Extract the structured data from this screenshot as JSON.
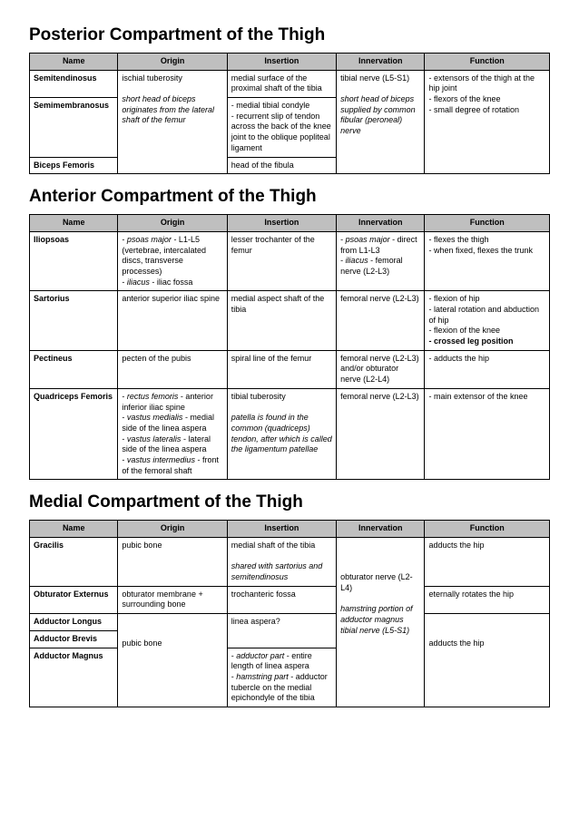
{
  "sections": [
    {
      "title": "Posterior Compartment of the Thigh",
      "headers": [
        "Name",
        "Origin",
        "Insertion",
        "Innervation",
        "Function"
      ],
      "style": {
        "header_bg": "#bfbfbf",
        "border_color": "#000000",
        "title_fontsize": 19,
        "cell_fontsize": 9
      },
      "rows": [
        {
          "name": "Semitendinosus",
          "insertion": "medial surface of the proximal shaft of the tibia"
        },
        {
          "name": "Semimembranosus",
          "insertion": "- medial tibial condyle\n- recurrent slip of tendon across the back of the knee joint to the oblique popliteal ligament"
        },
        {
          "name": "Biceps Femoris",
          "insertion": "head of the fibula"
        }
      ],
      "merged": {
        "origin": {
          "text": "ischial tuberosity",
          "note": "short head of biceps originates from the lateral shaft of the femur"
        },
        "innervation": {
          "text": "tibial nerve (L5-S1)",
          "note": "short head of biceps supplied by common fibular (peroneal) nerve"
        },
        "function": "- extensors of the thigh at the hip joint\n- flexors of the knee\n- small degree of rotation"
      }
    },
    {
      "title": "Anterior Compartment of the Thigh",
      "headers": [
        "Name",
        "Origin",
        "Insertion",
        "Innervation",
        "Function"
      ],
      "rows": [
        {
          "name": "Iliopsoas",
          "origin": {
            "items": [
              {
                "em": "psoas major",
                "rest": " - L1-L5 (vertebrae, intercalated discs, transverse processes)"
              },
              {
                "em": "iliacus",
                "rest": " - iliac fossa"
              }
            ]
          },
          "insertion": "lesser trochanter of the femur",
          "innervation": {
            "items": [
              {
                "em": "psoas major",
                "rest": " - direct from L1-L3"
              },
              {
                "em": "iliacus",
                "rest": " - femoral nerve (L2-L3)"
              }
            ]
          },
          "function": "- flexes the thigh\n- when fixed, flexes the trunk"
        },
        {
          "name": "Sartorius",
          "origin": "anterior superior iliac spine",
          "insertion": "medial aspect shaft of the tibia",
          "innervation": "femoral nerve (L2-L3)",
          "function": {
            "lines": [
              "- flexion of hip",
              "- lateral rotation and abduction of hip",
              "- flexion of the knee"
            ],
            "bold": "- crossed leg position"
          }
        },
        {
          "name": "Pectineus",
          "origin": "pecten of the pubis",
          "insertion": "spiral line of the femur",
          "innervation": "femoral nerve (L2-L3) and/or obturator nerve (L2-L4)",
          "function": "- adducts the hip"
        },
        {
          "name": "Quadriceps Femoris",
          "origin": {
            "items": [
              {
                "em": "rectus femoris",
                "rest": " - anterior inferior iliac spine"
              },
              {
                "em": "vastus medialis",
                "rest": " - medial side of the linea aspera"
              },
              {
                "em": "vastus lateralis",
                "rest": " - lateral side of the linea aspera"
              },
              {
                "em": "vastus intermedius",
                "rest": " - front of the femoral shaft"
              }
            ]
          },
          "insertion": {
            "plain": "tibial tuberosity",
            "italic": "patella is found in the common (quadriceps) tendon, after which is called the ligamentum patellae"
          },
          "innervation": "femoral nerve (L2-L3)",
          "function": "- main extensor of the knee"
        }
      ]
    },
    {
      "title": "Medial Compartment of the Thigh",
      "headers": [
        "Name",
        "Origin",
        "Insertion",
        "Innervation",
        "Function"
      ],
      "rows": [
        {
          "name": "Gracilis",
          "origin": "pubic bone",
          "insertion": {
            "plain": "medial shaft of the tibia",
            "italic": "shared with sartorius and semitendinosus"
          },
          "function": "adducts the hip"
        },
        {
          "name": "Obturator Externus",
          "origin": "obturator membrane + surrounding bone",
          "insertion": "trochanteric fossa",
          "function": "eternally rotates the hip"
        },
        {
          "name": "Adductor Longus"
        },
        {
          "name": "Adductor Brevis"
        },
        {
          "name": "Adductor Magnus",
          "insertion": {
            "items": [
              {
                "em": "adductor part",
                "rest": " - entire length of linea aspera"
              },
              {
                "em": "hamstring part",
                "rest": " - adductor tubercle on the medial epichondyle of the tibia"
              }
            ]
          }
        }
      ],
      "merged": {
        "origin_bottom": "pubic bone",
        "insertion_mid": "linea aspera?",
        "innervation": {
          "plain": "obturator nerve (L2-L4)",
          "italic": "hamstring portion of adductor magnus tibial nerve (L5-S1)"
        },
        "function_bottom": "adducts the hip"
      }
    }
  ]
}
